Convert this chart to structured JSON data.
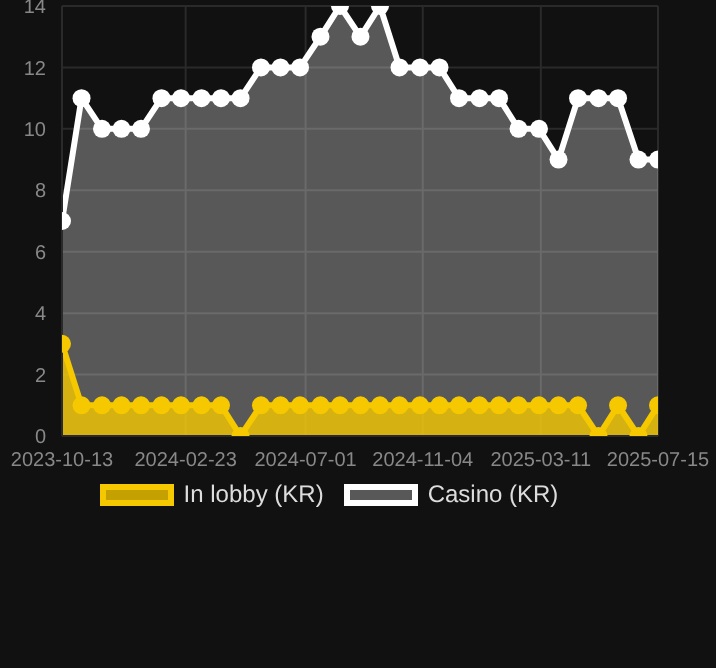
{
  "chart_data": {
    "type": "area",
    "x": [
      "2023-10-13",
      "2023-11-03",
      "2023-11-25",
      "2023-12-16",
      "2024-01-06",
      "2024-01-28",
      "2024-02-18",
      "2024-03-11",
      "2024-04-01",
      "2024-04-22",
      "2024-05-14",
      "2024-06-04",
      "2024-06-25",
      "2024-07-17",
      "2024-08-07",
      "2024-08-29",
      "2024-09-19",
      "2024-10-10",
      "2024-11-01",
      "2024-11-22",
      "2024-12-13",
      "2025-01-04",
      "2025-01-25",
      "2025-02-15",
      "2025-03-09",
      "2025-03-30",
      "2025-04-20",
      "2025-05-12",
      "2025-06-02",
      "2025-06-24",
      "2025-07-15"
    ],
    "series": [
      {
        "name": "In lobby (KR)",
        "color": "#f5c800",
        "values": [
          3,
          1,
          1,
          1,
          1,
          1,
          1,
          1,
          1,
          0,
          1,
          1,
          1,
          1,
          1,
          1,
          1,
          1,
          1,
          1,
          1,
          1,
          1,
          1,
          1,
          1,
          1,
          0,
          1,
          0,
          1
        ]
      },
      {
        "name": "Casino (KR)",
        "color": "#ffffff",
        "values": [
          7,
          11,
          10,
          10,
          10,
          11,
          11,
          11,
          11,
          11,
          12,
          12,
          12,
          13,
          14,
          13,
          14,
          12,
          12,
          12,
          11,
          11,
          11,
          10,
          10,
          9,
          11,
          11,
          11,
          9,
          9
        ]
      }
    ],
    "xlim": [
      "2023-10-13",
      "2025-07-15"
    ],
    "xticks": [
      "2023-10-13",
      "2024-02-23",
      "2024-07-01",
      "2024-11-04",
      "2025-03-11",
      "2025-07-15"
    ],
    "ylim": [
      0,
      14
    ],
    "yticks": [
      0,
      2,
      4,
      6,
      8,
      10,
      12,
      14
    ],
    "grid": true,
    "legend": "bottom",
    "marker": "circle"
  }
}
